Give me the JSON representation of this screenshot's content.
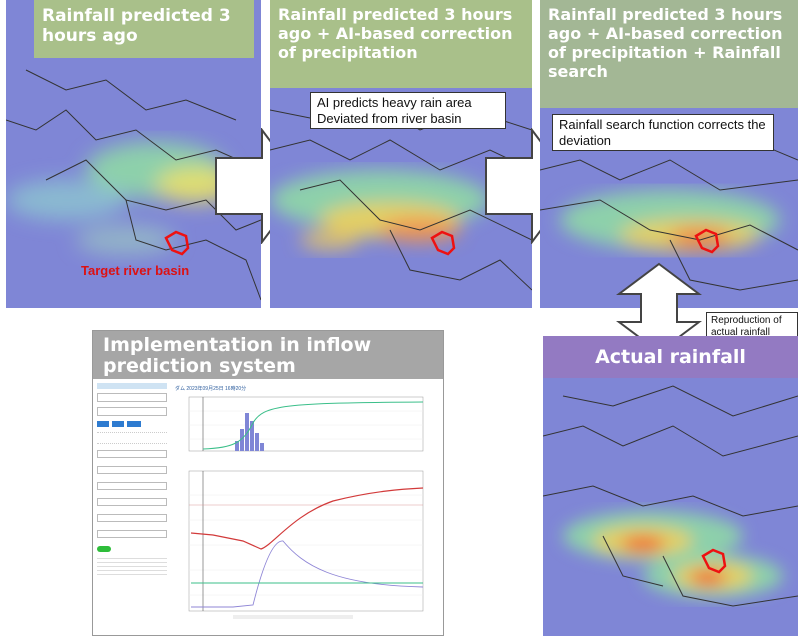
{
  "panels": {
    "p1": {
      "title": "Rainfall predicted 3 hours ago",
      "target_label": "Target river basin"
    },
    "p2": {
      "title": "Rainfall predicted 3 hours ago + AI-based correction of precipitation",
      "callout": "AI predicts heavy rain area Deviated from river basin"
    },
    "p3": {
      "title": "Rainfall predicted 3 hours ago + AI-based correction of precipitation + Rainfall search",
      "callout": "Rainfall search function corrects the deviation"
    },
    "actual": {
      "title": "Actual rainfall",
      "reproduction_label": "Reproduction of actual rainfall"
    },
    "implementation": {
      "title": "Implementation in inflow prediction system",
      "chart_header": "ダム 2023年09月25日 16時20分"
    }
  },
  "colors": {
    "title_bg": "#a9c08a",
    "actual_bg": "#9678be",
    "impl_bg": "#a6a6a6",
    "map_base": "#7f86d6",
    "basin_outline": "#e11",
    "inflow_line": "#d23a3a",
    "cumulative_line": "#3bbf8a",
    "rain_bars": "#7f86d6"
  },
  "icons": {
    "arrow_right": "arrow-right-icon",
    "arrow_updown": "arrow-updown-icon"
  }
}
